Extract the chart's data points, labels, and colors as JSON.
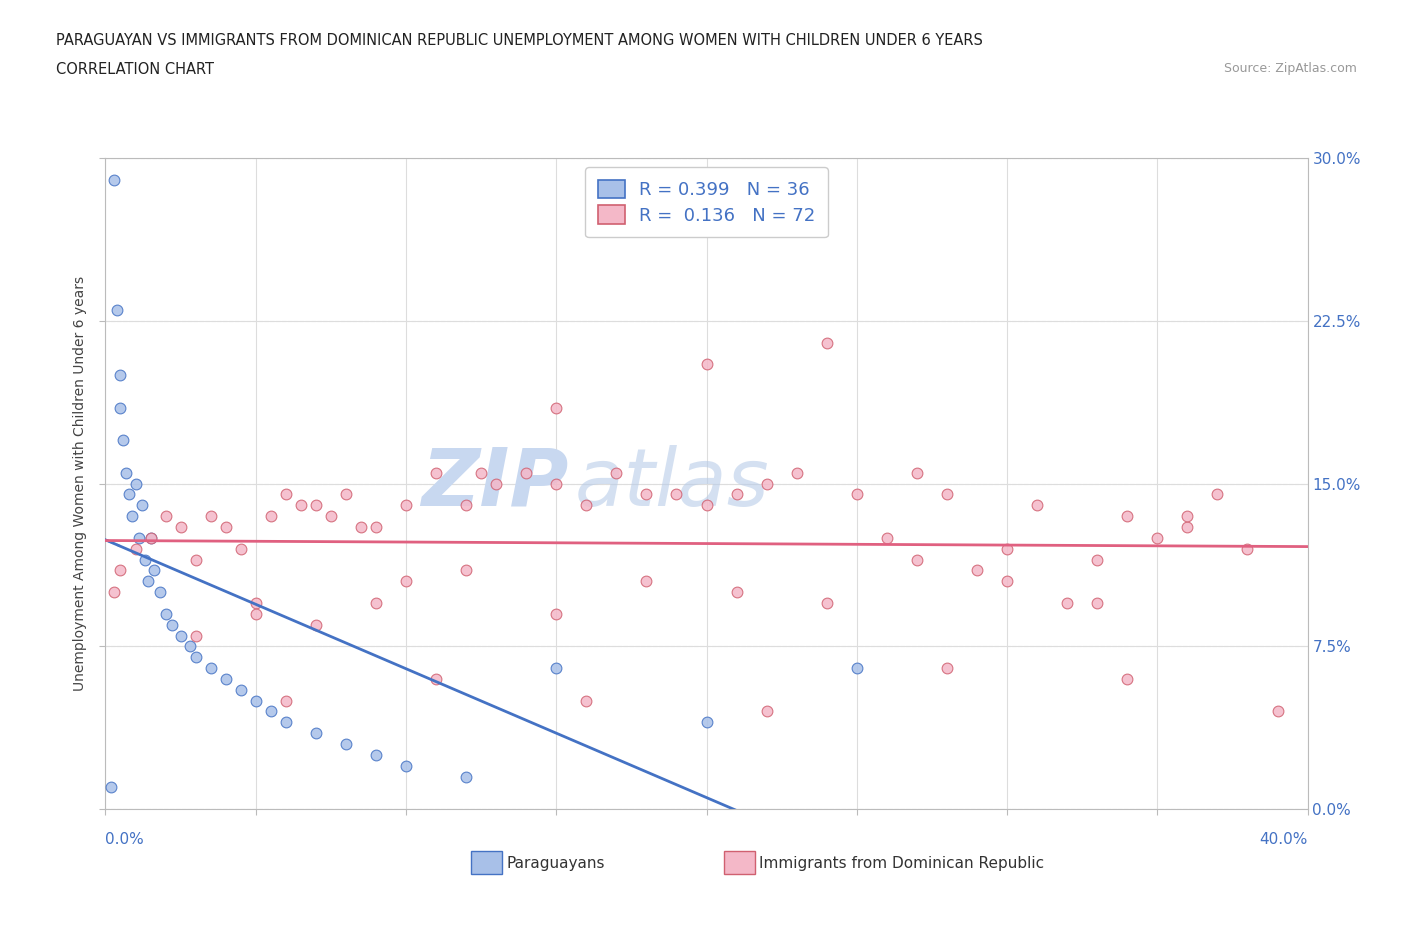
{
  "title_line1": "PARAGUAYAN VS IMMIGRANTS FROM DOMINICAN REPUBLIC UNEMPLOYMENT AMONG WOMEN WITH CHILDREN UNDER 6 YEARS",
  "title_line2": "CORRELATION CHART",
  "source": "Source: ZipAtlas.com",
  "ylabel_label": "Unemployment Among Women with Children Under 6 years",
  "legend_label1": "Paraguayans",
  "legend_label2": "Immigrants from Dominican Republic",
  "R1": 0.399,
  "N1": 36,
  "R2": 0.136,
  "N2": 72,
  "color_blue_fill": "#A8C0E8",
  "color_blue_edge": "#4472C4",
  "color_pink_fill": "#F4B8C8",
  "color_pink_edge": "#D06070",
  "color_blue_line": "#4472C4",
  "color_pink_line": "#E06080",
  "color_watermark": "#C8D8F0",
  "blue_x": [
    0.2,
    0.3,
    0.4,
    0.5,
    0.5,
    0.6,
    0.7,
    0.8,
    0.9,
    1.0,
    1.1,
    1.2,
    1.3,
    1.4,
    1.5,
    1.6,
    1.8,
    2.0,
    2.2,
    2.5,
    2.8,
    3.0,
    3.5,
    4.0,
    4.5,
    5.0,
    5.5,
    6.0,
    7.0,
    8.0,
    9.0,
    10.0,
    12.0,
    15.0,
    20.0,
    25.0
  ],
  "blue_y": [
    1.0,
    29.0,
    23.0,
    20.0,
    18.5,
    17.0,
    15.5,
    14.5,
    13.5,
    15.0,
    12.5,
    14.0,
    11.5,
    10.5,
    12.5,
    11.0,
    10.0,
    9.0,
    8.5,
    8.0,
    7.5,
    7.0,
    6.5,
    6.0,
    5.5,
    5.0,
    4.5,
    4.0,
    3.5,
    3.0,
    2.5,
    2.0,
    1.5,
    6.5,
    4.0,
    6.5
  ],
  "pink_x": [
    0.3,
    0.5,
    1.0,
    1.5,
    2.0,
    2.5,
    3.0,
    3.5,
    4.0,
    4.5,
    5.0,
    5.5,
    6.0,
    6.5,
    7.0,
    7.5,
    8.0,
    8.5,
    9.0,
    10.0,
    10.0,
    11.0,
    12.0,
    12.5,
    13.0,
    14.0,
    15.0,
    15.0,
    16.0,
    17.0,
    18.0,
    19.0,
    20.0,
    20.0,
    21.0,
    22.0,
    23.0,
    24.0,
    25.0,
    26.0,
    27.0,
    28.0,
    29.0,
    30.0,
    31.0,
    32.0,
    33.0,
    34.0,
    35.0,
    36.0,
    37.0,
    38.0,
    3.0,
    5.0,
    7.0,
    9.0,
    12.0,
    15.0,
    18.0,
    21.0,
    24.0,
    27.0,
    30.0,
    33.0,
    36.0,
    39.0,
    6.0,
    11.0,
    16.0,
    22.0,
    28.0,
    34.0
  ],
  "pink_y": [
    10.0,
    11.0,
    12.0,
    12.5,
    13.5,
    13.0,
    11.5,
    13.5,
    13.0,
    12.0,
    9.5,
    13.5,
    14.5,
    14.0,
    14.0,
    13.5,
    14.5,
    13.0,
    13.0,
    14.0,
    10.5,
    15.5,
    14.0,
    15.5,
    15.0,
    15.5,
    15.0,
    18.5,
    14.0,
    15.5,
    14.5,
    14.5,
    14.0,
    20.5,
    14.5,
    15.0,
    15.5,
    21.5,
    14.5,
    12.5,
    15.5,
    14.5,
    11.0,
    12.0,
    14.0,
    9.5,
    11.5,
    13.5,
    12.5,
    13.0,
    14.5,
    12.0,
    8.0,
    9.0,
    8.5,
    9.5,
    11.0,
    9.0,
    10.5,
    10.0,
    9.5,
    11.5,
    10.5,
    9.5,
    13.5,
    4.5,
    5.0,
    6.0,
    5.0,
    4.5,
    6.5,
    6.0
  ],
  "xmin": 0.0,
  "xmax": 40.0,
  "ymin": 0.0,
  "ymax": 30.0,
  "yticks": [
    0.0,
    7.5,
    15.0,
    22.5,
    30.0
  ],
  "xtick_count": 9,
  "grid_color": "#DDDDDD",
  "background_color": "#FFFFFF"
}
